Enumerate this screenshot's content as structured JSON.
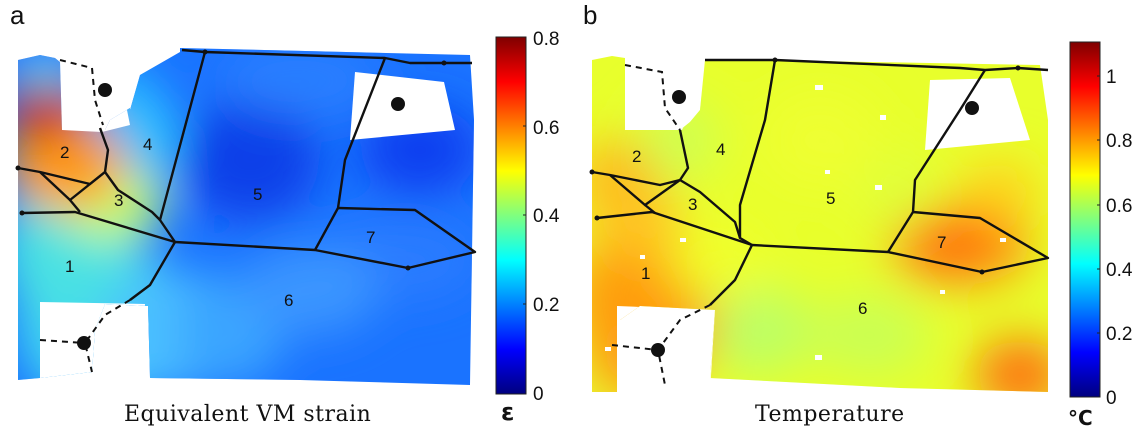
{
  "panels": [
    {
      "letter": "a",
      "caption": "Equivalent VM strain",
      "unit": "ε",
      "colorbar_ticks": [
        "0.8",
        "0.6",
        "0.4",
        "0.2",
        "0"
      ],
      "grain_labels": [
        "1",
        "2",
        "3",
        "4",
        "5",
        "6",
        "7"
      ]
    },
    {
      "letter": "b",
      "caption": "Temperature",
      "unit": "°C",
      "colorbar_ticks": [
        "1",
        "0.8",
        "0.6",
        "0.4",
        "0.2",
        "0"
      ],
      "grain_labels": [
        "1",
        "2",
        "3",
        "4",
        "5",
        "6",
        "7"
      ]
    }
  ],
  "colormap": [
    "#00007f",
    "#0000ff",
    "#007fff",
    "#00ffff",
    "#7fff7f",
    "#ffff00",
    "#ff7f00",
    "#ff0000",
    "#7f0000"
  ]
}
